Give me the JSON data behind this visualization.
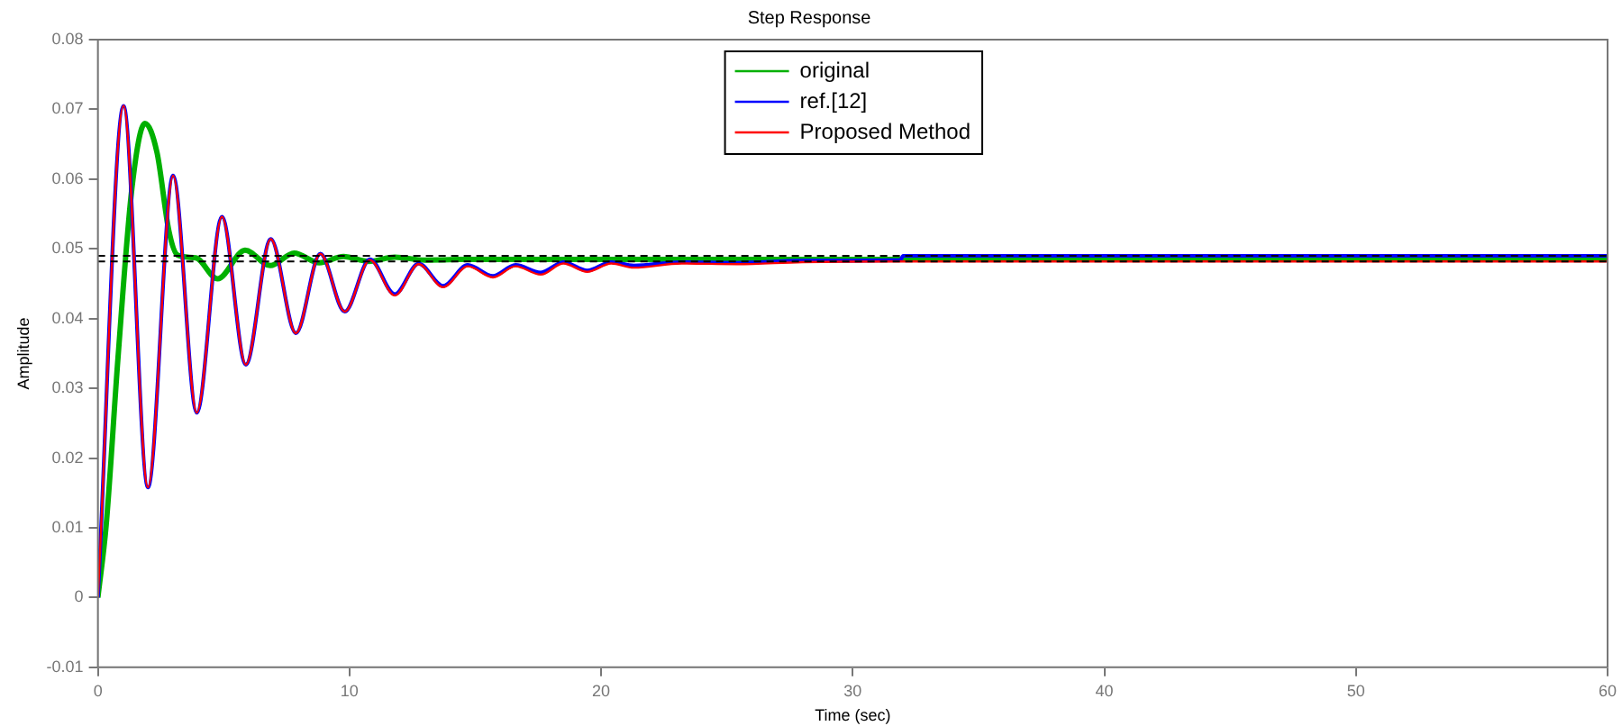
{
  "chart_data": {
    "type": "line",
    "title": "Step Response",
    "xlabel": "Time (sec)",
    "ylabel": "Amplitude",
    "xlim": [
      0,
      60
    ],
    "xticks": [
      0,
      10,
      20,
      30,
      40,
      50,
      60
    ],
    "ylim": [
      -0.01,
      0.08
    ],
    "yticks": [
      -0.01,
      0,
      0.01,
      0.02,
      0.03,
      0.04,
      0.05,
      0.06,
      0.07,
      0.08
    ],
    "grid": false,
    "legend": "top",
    "marker": "none",
    "line_style": "solid",
    "ref_lines": [
      {
        "axis": "y",
        "value": 0.049,
        "color": "#000000",
        "line_style": "dashed"
      },
      {
        "axis": "y",
        "value": 0.0482,
        "color": "#000000",
        "line_style": "dashed"
      }
    ],
    "series": [
      {
        "name": "original",
        "color": "#00b000",
        "x": [
          0,
          0.33,
          0.8,
          1.35,
          1.87,
          2.35,
          2.82,
          3.17,
          3.89,
          4.76,
          5.85,
          6.85,
          7.8,
          8.8,
          9.76,
          10.76,
          11.8,
          13,
          15,
          20,
          30,
          40,
          60
        ],
        "values": [
          0,
          0.0104,
          0.0344,
          0.0586,
          0.068,
          0.0638,
          0.0526,
          0.0491,
          0.0487,
          0.0457,
          0.0498,
          0.0476,
          0.0494,
          0.048,
          0.0489,
          0.0482,
          0.0488,
          0.0484,
          0.0485,
          0.0485,
          0.0485,
          0.0485,
          0.0485
        ]
      },
      {
        "name": "ref.[12]",
        "color": "#0000ff",
        "x": [
          0,
          1.02,
          1.99,
          2.99,
          3.93,
          4.93,
          5.88,
          6.87,
          7.87,
          8.84,
          9.81,
          10.81,
          11.8,
          12.75,
          13.72,
          14.7,
          15.7,
          16.6,
          17.6,
          18.5,
          19.45,
          20.4,
          21.3,
          23.2,
          25.4,
          28,
          31.9,
          32,
          40,
          60
        ],
        "values": [
          0,
          0.0705,
          0.0158,
          0.0605,
          0.0265,
          0.0546,
          0.0334,
          0.0514,
          0.0379,
          0.0493,
          0.041,
          0.0485,
          0.0435,
          0.0479,
          0.0447,
          0.0477,
          0.0461,
          0.0477,
          0.0466,
          0.0481,
          0.0469,
          0.0481,
          0.0476,
          0.0481,
          0.048,
          0.0483,
          0.0484,
          0.049,
          0.049,
          0.049
        ]
      },
      {
        "name": "Proposed Method",
        "color": "#ff0000",
        "x": [
          0,
          1.02,
          1.99,
          2.99,
          3.93,
          4.93,
          5.88,
          6.87,
          7.87,
          8.84,
          9.81,
          10.81,
          11.8,
          12.75,
          13.72,
          14.7,
          15.7,
          16.6,
          17.6,
          18.5,
          19.45,
          20.4,
          21.3,
          23.2,
          25.4,
          28,
          32,
          40,
          60
        ],
        "values": [
          0,
          0.0705,
          0.0158,
          0.0605,
          0.0265,
          0.0546,
          0.0334,
          0.0514,
          0.0379,
          0.0493,
          0.041,
          0.0484,
          0.0433,
          0.0478,
          0.0445,
          0.0475,
          0.0459,
          0.0475,
          0.0463,
          0.0479,
          0.0467,
          0.0479,
          0.0473,
          0.0479,
          0.0478,
          0.0481,
          0.0482,
          0.0482,
          0.0482
        ]
      }
    ]
  }
}
